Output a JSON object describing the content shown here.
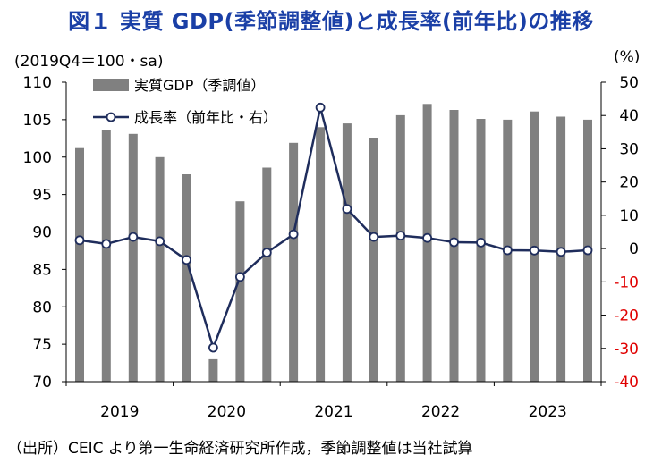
{
  "title": "図１ 実質 GDP(季節調整値)と成長率(前年比)の推移",
  "unit_left": "(2019Q4＝100・sa)",
  "unit_right": "(%)",
  "source": "（出所）CEIC より第一生命経済研究所作成，季節調整値は当社試算",
  "colors": {
    "bar": "#808080",
    "line": "#1f2d5c",
    "negative_tick": "#e00000",
    "title": "#1a3fa6"
  },
  "chart_data": {
    "type": "bar+line",
    "x": [
      "2019Q1",
      "2019Q2",
      "2019Q3",
      "2019Q4",
      "2020Q1",
      "2020Q2",
      "2020Q3",
      "2020Q4",
      "2021Q1",
      "2021Q2",
      "2021Q3",
      "2021Q4",
      "2022Q1",
      "2022Q2",
      "2022Q3",
      "2022Q4",
      "2023Q1",
      "2023Q2",
      "2023Q3",
      "2023Q4"
    ],
    "year_labels": [
      "2019",
      "2020",
      "2021",
      "2022",
      "2023"
    ],
    "year_label_index": [
      0,
      4,
      8,
      12,
      16
    ],
    "series": [
      {
        "name": "実質GDP（季調値）",
        "type": "bar",
        "axis": "left",
        "values": [
          101.2,
          103.6,
          103.1,
          100.0,
          97.7,
          73.0,
          94.1,
          98.6,
          101.9,
          104.0,
          104.5,
          102.6,
          105.6,
          107.1,
          106.3,
          105.1,
          105.0,
          106.1,
          105.4,
          105.0
        ]
      },
      {
        "name": "成長率（前年比・右）",
        "type": "line",
        "axis": "right",
        "values": [
          2.5,
          1.4,
          3.5,
          2.2,
          -3.4,
          -29.8,
          -8.5,
          -1.2,
          4.3,
          42.4,
          11.9,
          3.5,
          3.9,
          3.2,
          1.9,
          1.8,
          -0.5,
          -0.6,
          -1.0,
          -0.5
        ]
      }
    ],
    "y_left": {
      "min": 70,
      "max": 110,
      "ticks": [
        70,
        75,
        80,
        85,
        90,
        95,
        100,
        105,
        110
      ]
    },
    "y_right": {
      "min": -40,
      "max": 50,
      "ticks": [
        50,
        40,
        30,
        20,
        10,
        0,
        -10,
        -20,
        -30,
        -40
      ]
    },
    "legend_position": "top-left",
    "grid": false
  }
}
